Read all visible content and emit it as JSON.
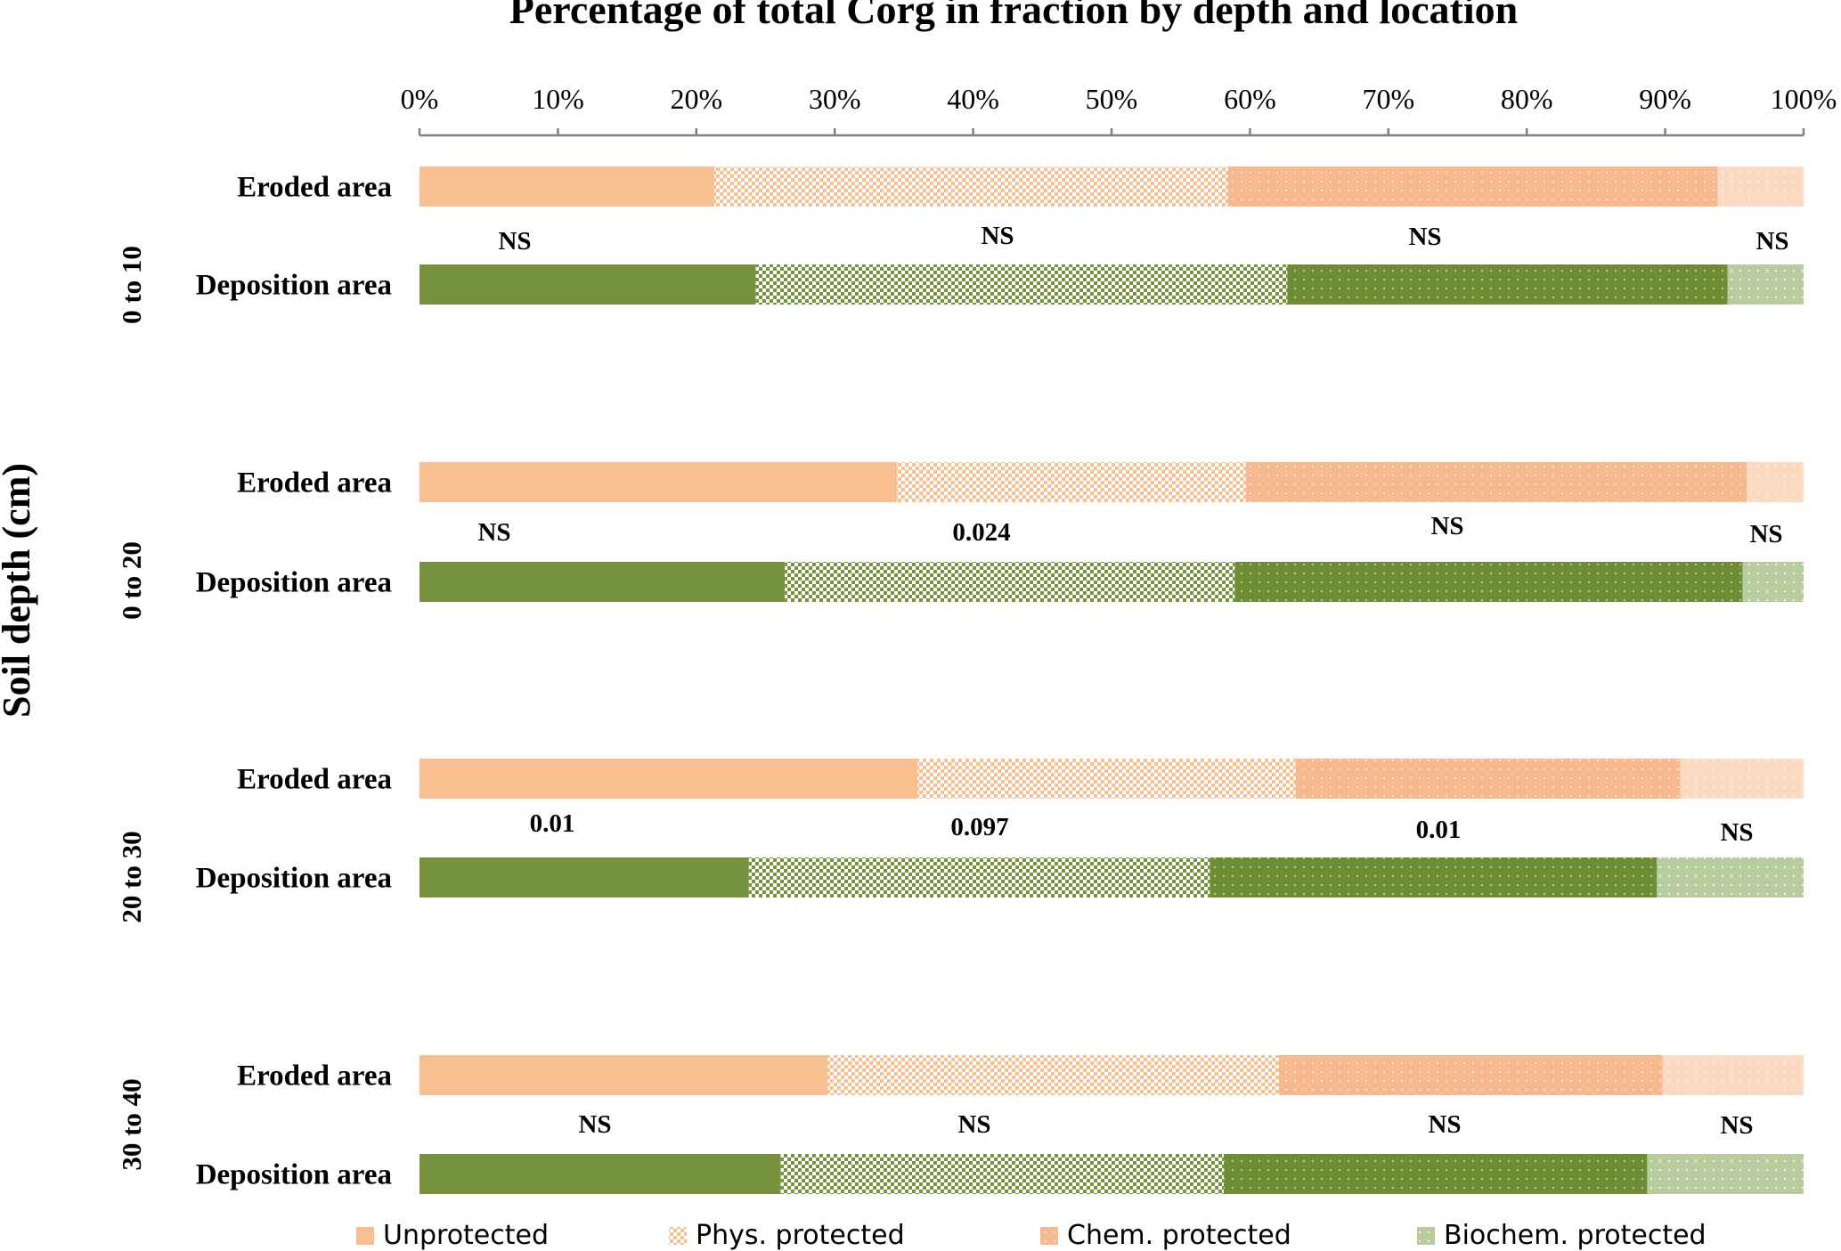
{
  "chart_data": {
    "type": "bar",
    "orientation": "horizontal",
    "stacked": "percent",
    "title": "Percentage of total Corg in fraction by depth and location",
    "xlabel": "",
    "ylabel": "Soil depth (cm)",
    "xlim": [
      0,
      100
    ],
    "x_ticks": [
      "0%",
      "10%",
      "20%",
      "30%",
      "40%",
      "50%",
      "60%",
      "70%",
      "80%",
      "90%",
      "100%"
    ],
    "x_axis_position": "top",
    "grid": false,
    "legend_position": "bottom",
    "series": [
      {
        "name": "Unprotected",
        "colors": {
          "Eroded area": "#F8C090",
          "Deposition area": "#76923C"
        },
        "pattern": "solid"
      },
      {
        "name": "Phys. protected",
        "colors": {
          "Eroded area": "#F8C090",
          "Deposition area": "#76923C"
        },
        "pattern": "checker"
      },
      {
        "name": "Chem. protected",
        "colors": {
          "Eroded area": "#F7B98D",
          "Deposition area": "#6E8E35"
        },
        "pattern": "dots"
      },
      {
        "name": "Biochem. protected",
        "colors": {
          "Eroded area": "#FCDAC2",
          "Deposition area": "#B9CC9E"
        },
        "pattern": "dots"
      }
    ],
    "groups": [
      {
        "label": "0 to 10",
        "rows": [
          {
            "label": "Eroded area",
            "values": [
              21.3,
              37.1,
              35.4,
              6.2
            ]
          },
          {
            "label": "Deposition area",
            "values": [
              24.3,
              38.4,
              31.8,
              5.5
            ],
            "annotations": [
              "NS",
              "NS",
              "NS",
              "NS"
            ]
          }
        ]
      },
      {
        "label": "0 to 20",
        "rows": [
          {
            "label": "Eroded area",
            "values": [
              34.5,
              25.2,
              36.2,
              4.1
            ]
          },
          {
            "label": "Deposition area",
            "values": [
              26.4,
              32.5,
              36.7,
              4.4
            ],
            "annotations": [
              "NS",
              "0.024",
              "NS",
              "NS"
            ]
          }
        ]
      },
      {
        "label": "20 to 30",
        "rows": [
          {
            "label": "Eroded area",
            "values": [
              36.0,
              27.3,
              27.8,
              8.9
            ]
          },
          {
            "label": "Deposition area",
            "values": [
              23.8,
              33.3,
              32.3,
              10.6
            ],
            "annotations": [
              "0.01",
              "0.097",
              "0.01",
              "NS"
            ]
          }
        ]
      },
      {
        "label": "30 to 40",
        "rows": [
          {
            "label": "Eroded area",
            "values": [
              29.5,
              32.6,
              27.7,
              10.2
            ]
          },
          {
            "label": "Deposition area",
            "values": [
              26.1,
              32.0,
              30.6,
              11.3
            ],
            "annotations": [
              "NS",
              "NS",
              "NS",
              "NS"
            ]
          }
        ]
      }
    ],
    "legend": [
      {
        "label": "Unprotected",
        "color": "#F8C090",
        "pattern": "solid"
      },
      {
        "label": "Phys. protected",
        "color": "#F8C090",
        "pattern": "checker"
      },
      {
        "label": "Chem. protected",
        "color": "#F7B98D",
        "pattern": "dots"
      },
      {
        "label": "Biochem. protected",
        "color": "#B9CC9E",
        "pattern": "dots"
      }
    ]
  }
}
